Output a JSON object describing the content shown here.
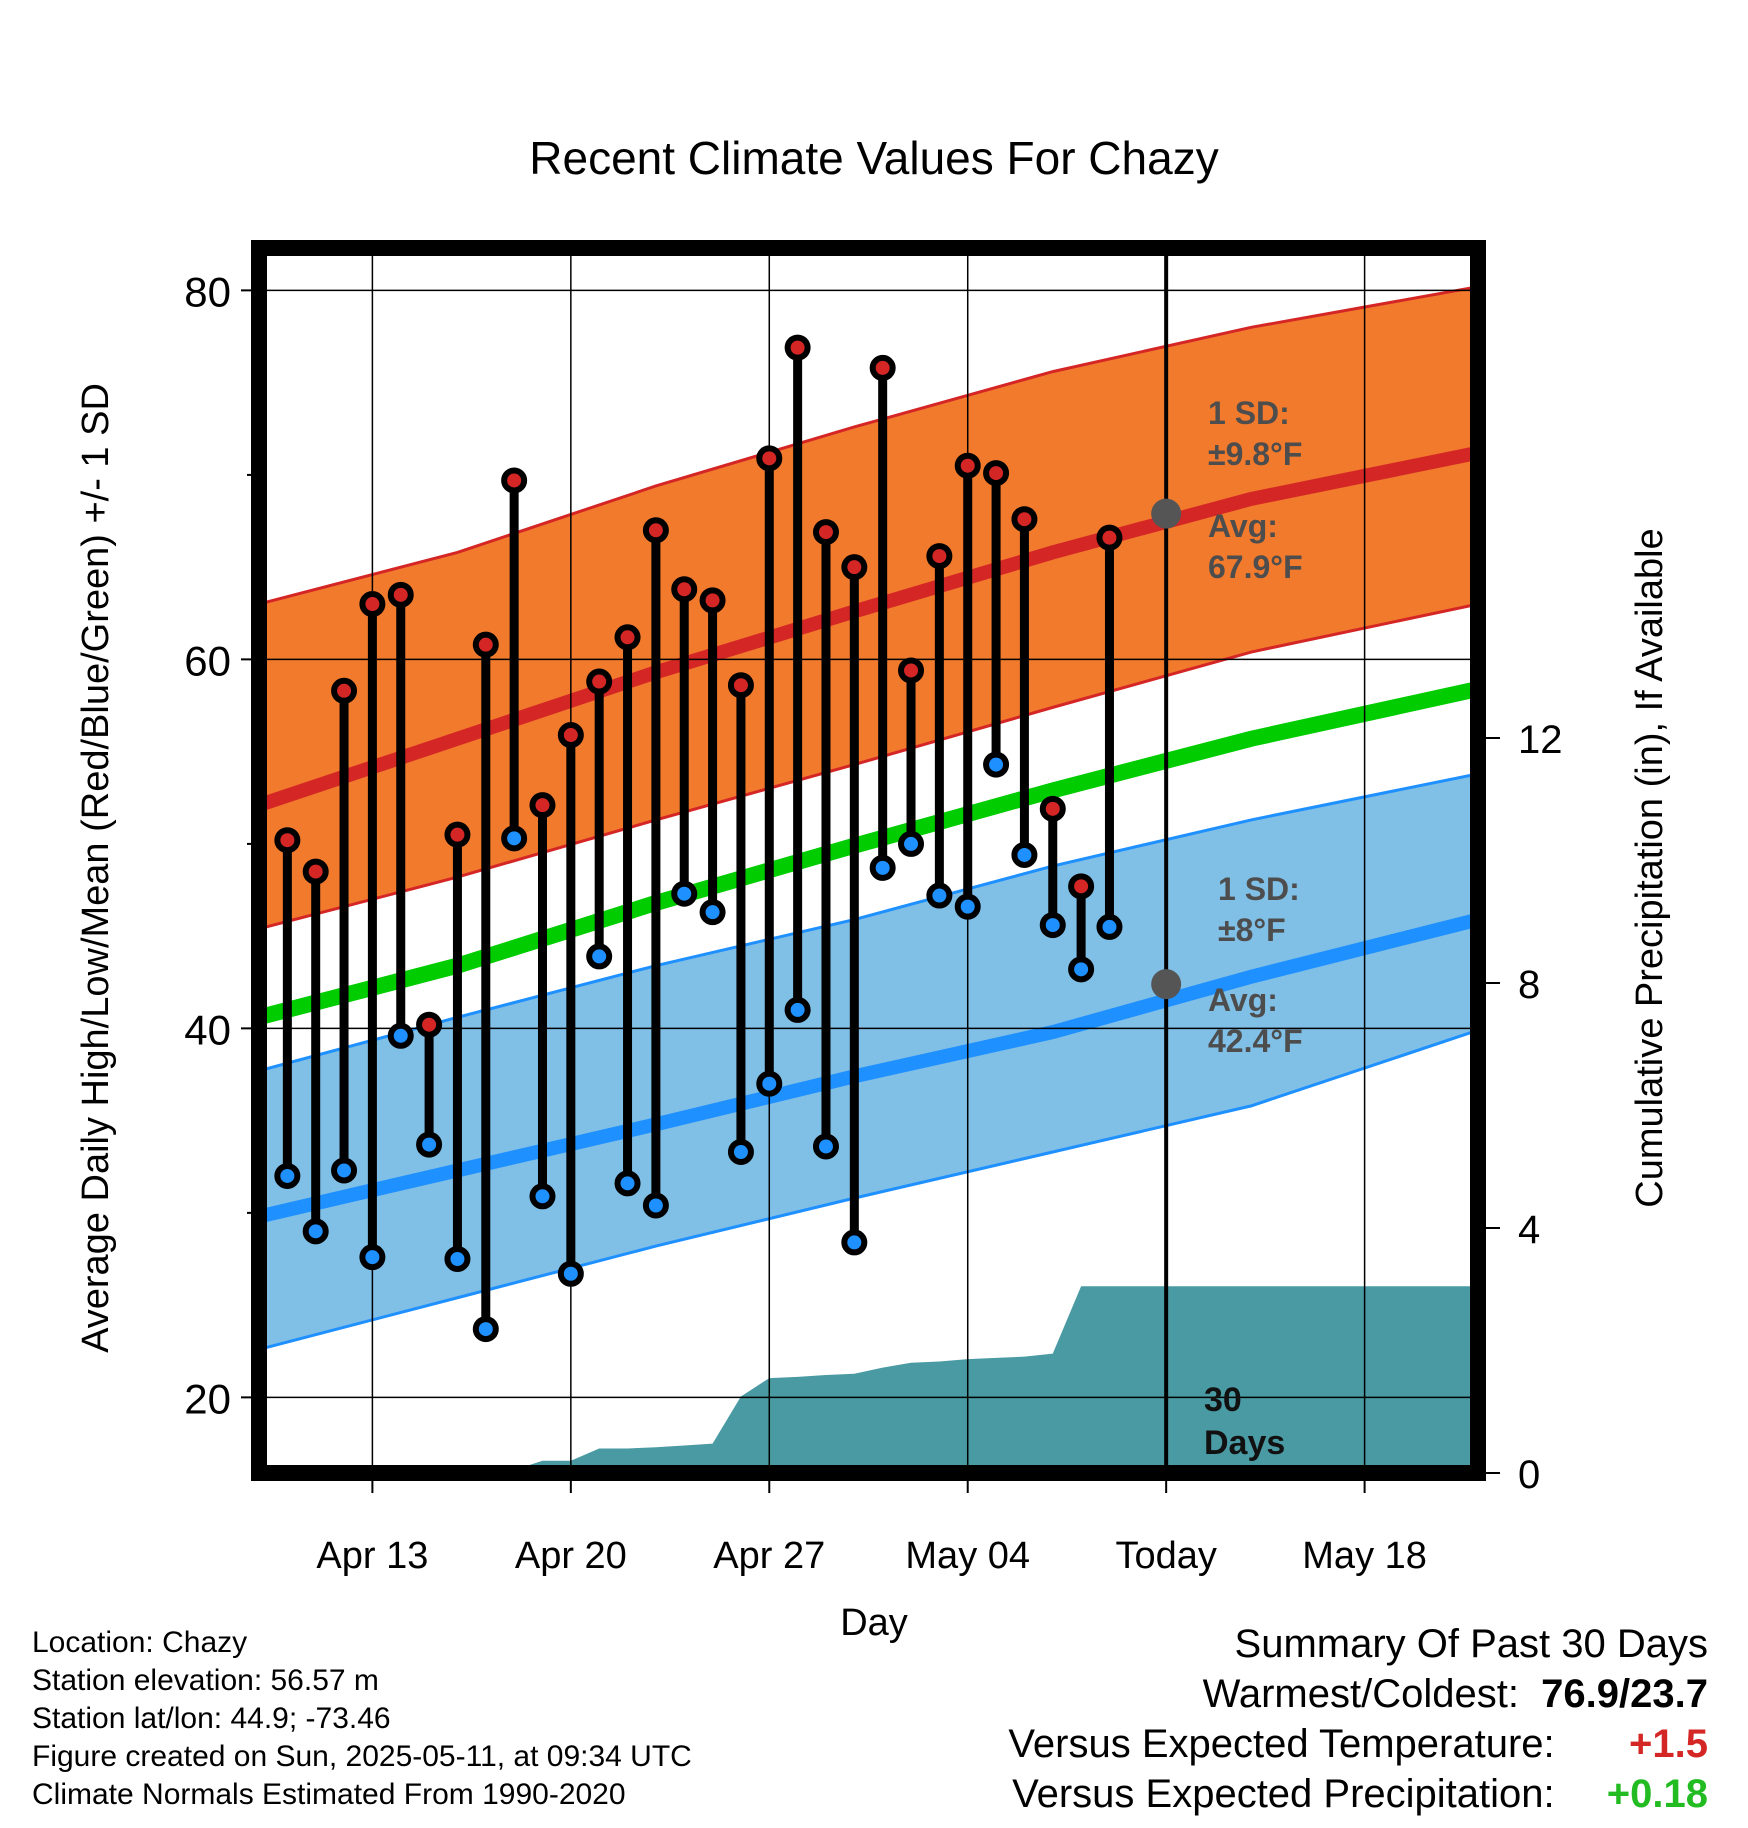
{
  "chart_data": {
    "type": "line",
    "title": "Recent Climate Values For Chazy",
    "xlabel": "Day",
    "ylabel": "Average Daily High/Low/Mean (Red/Blue/Green) +/- 1 SD",
    "y2label": "Cumulative Precipitation (in), If Available",
    "ylim": [
      15.9,
      82.3
    ],
    "y2lim": [
      0,
      20
    ],
    "yticks": [
      20,
      40,
      60,
      80
    ],
    "y2ticks": [
      0,
      4,
      8,
      12
    ],
    "xlim": [
      "2025-04-09",
      "2025-05-22"
    ],
    "xticks": [
      "Apr 13",
      "Apr 20",
      "Apr 27",
      "May 04",
      "Today",
      "May 18"
    ],
    "xtick_dates": [
      "2025-04-13",
      "2025-04-20",
      "2025-04-27",
      "2025-05-04",
      "2025-05-11",
      "2025-05-18"
    ],
    "grid": true,
    "today": "2025-05-11",
    "normals": {
      "dates": [
        "2025-04-09",
        "2025-04-16",
        "2025-04-23",
        "2025-04-30",
        "2025-05-07",
        "2025-05-14",
        "2025-05-22"
      ],
      "high_mean": [
        52.1,
        55.7,
        59.3,
        62.6,
        65.8,
        68.7,
        71.2
      ],
      "high_upper": [
        63.0,
        65.8,
        69.4,
        72.6,
        75.6,
        78.0,
        80.2
      ],
      "high_lower": [
        45.4,
        48.2,
        51.3,
        54.3,
        57.4,
        60.4,
        63.0
      ],
      "mean": [
        40.6,
        43.4,
        46.8,
        49.9,
        52.9,
        55.7,
        58.4
      ],
      "low_mean": [
        29.8,
        32.3,
        34.8,
        37.4,
        39.8,
        42.8,
        45.9
      ],
      "low_upper": [
        37.7,
        40.6,
        43.4,
        45.9,
        48.8,
        51.3,
        53.8
      ],
      "low_lower": [
        22.6,
        25.4,
        28.2,
        30.8,
        33.3,
        35.8,
        39.9
      ]
    },
    "observed": {
      "dates": [
        "2025-04-10",
        "2025-04-11",
        "2025-04-12",
        "2025-04-13",
        "2025-04-14",
        "2025-04-15",
        "2025-04-16",
        "2025-04-17",
        "2025-04-18",
        "2025-04-19",
        "2025-04-20",
        "2025-04-21",
        "2025-04-22",
        "2025-04-23",
        "2025-04-24",
        "2025-04-25",
        "2025-04-26",
        "2025-04-27",
        "2025-04-28",
        "2025-04-29",
        "2025-04-30",
        "2025-05-01",
        "2025-05-02",
        "2025-05-03",
        "2025-05-04",
        "2025-05-05",
        "2025-05-06",
        "2025-05-07",
        "2025-05-08",
        "2025-05-09",
        "2025-05-10"
      ],
      "high": [
        50.2,
        48.5,
        58.3,
        63.0,
        63.5,
        40.2,
        50.5,
        60.8,
        69.7,
        52.1,
        55.9,
        58.8,
        61.2,
        67.0,
        63.8,
        63.2,
        58.6,
        70.9,
        76.9,
        66.9,
        65.0,
        75.8,
        59.4,
        65.6,
        70.5,
        70.1,
        67.6,
        51.9,
        47.7,
        66.6,
        null
      ],
      "low": [
        32.0,
        29.0,
        32.3,
        27.6,
        39.6,
        33.7,
        27.5,
        23.7,
        50.3,
        30.9,
        26.7,
        43.9,
        31.6,
        30.4,
        47.3,
        46.3,
        33.3,
        37.0,
        41.0,
        33.6,
        28.4,
        48.7,
        50.0,
        47.2,
        46.6,
        54.3,
        49.4,
        45.6,
        43.2,
        45.5,
        null
      ]
    },
    "precip": {
      "dates": [
        "2025-04-09",
        "2025-04-16",
        "2025-04-17",
        "2025-04-18",
        "2025-04-19",
        "2025-04-20",
        "2025-04-21",
        "2025-04-22",
        "2025-04-23",
        "2025-04-24",
        "2025-04-25",
        "2025-04-26",
        "2025-04-27",
        "2025-04-28",
        "2025-04-29",
        "2025-04-30",
        "2025-05-01",
        "2025-05-02",
        "2025-05-03",
        "2025-05-04",
        "2025-05-05",
        "2025-05-06",
        "2025-05-07",
        "2025-05-08",
        "2025-05-09",
        "2025-05-10",
        "2025-05-11",
        "2025-05-22"
      ],
      "cumulative": [
        0.0,
        0.0,
        0.0,
        0.05,
        0.2,
        0.2,
        0.4,
        0.4,
        0.42,
        0.45,
        0.48,
        1.25,
        1.55,
        1.57,
        1.6,
        1.62,
        1.72,
        1.8,
        1.82,
        1.86,
        1.88,
        1.9,
        1.95,
        3.05,
        3.05,
        3.05,
        3.05,
        3.05
      ]
    },
    "annotations": {
      "high_sd_label": "1 SD:",
      "high_sd_value": "±9.8°F",
      "high_avg_label": "Avg:",
      "high_avg_value": "67.9°F",
      "high_avg": 67.9,
      "low_sd_label": "1 SD:",
      "low_sd_value": "±8°F",
      "low_avg_label": "Avg:",
      "low_avg_value": "42.4°F",
      "low_avg": 42.4,
      "days_number": "30",
      "days_word": "Days"
    },
    "colors": {
      "high_band": "#f17a2d",
      "high_line": "#d52626",
      "low_band": "#80bfe6",
      "low_line": "#1e90ff",
      "mean_line": "#00cc00",
      "precip": "#4a9aa3",
      "high_dot": "#d52626",
      "low_dot": "#1e90ff",
      "annotation": "#4d4d4d"
    }
  },
  "info": {
    "location": "Location: Chazy",
    "elevation": "Station elevation: 56.57 m",
    "latlon": "Station lat/lon: 44.9; -73.46",
    "created": "Figure created on Sun, 2025-05-11, at 09:34 UTC",
    "normals": "Climate Normals Estimated From 1990-2020"
  },
  "summary": {
    "title": "Summary Of Past 30 Days",
    "warm_cold_label": "Warmest/Coldest:",
    "warm_cold_value": "76.9/23.7",
    "temp_label": "Versus Expected Temperature:",
    "temp_value": "+1.5",
    "temp_color": "#d52626",
    "precip_label": "Versus Expected Precipitation:",
    "precip_value": "+0.18",
    "precip_color": "#22bb22"
  }
}
